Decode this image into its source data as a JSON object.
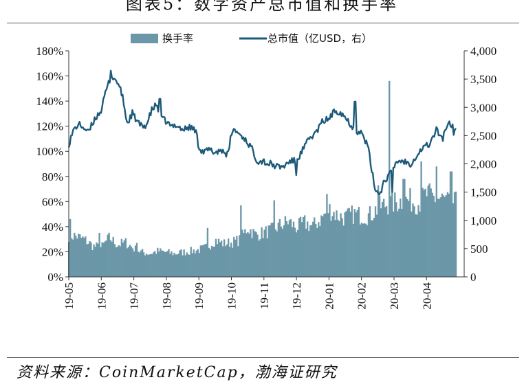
{
  "figure": {
    "title": "图表5：数字资产总市值和换手率",
    "source": "资料来源：CoinMarketCap，渤海证研究"
  },
  "colors": {
    "bar": "#6b97a8",
    "line": "#1d5a7a"
  },
  "chart_data": {
    "type": "bar+line",
    "title": "",
    "legend_position": "top",
    "grid": false,
    "x": {
      "categories": [
        "19-05",
        "19-06",
        "19-07",
        "19-08",
        "19-09",
        "19-10",
        "19-11",
        "19-12",
        "20-01",
        "20-02",
        "20-03",
        "20-04"
      ]
    },
    "y_left": {
      "ticks": [
        "0%",
        "20%",
        "40%",
        "60%",
        "80%",
        "100%",
        "120%",
        "140%",
        "160%",
        "180%"
      ],
      "min": 0,
      "max": 180
    },
    "y_right": {
      "ticks": [
        "0",
        "500",
        "1,000",
        "1,500",
        "2,000",
        "2,500",
        "3,000",
        "3,500",
        "4,000"
      ],
      "min": 0,
      "max": 4000
    },
    "series": [
      {
        "name": "换手率",
        "type": "bar",
        "axis": "left",
        "unit": "%",
        "x": [
          0.0,
          0.25,
          0.5,
          0.75,
          1.0,
          1.25,
          1.5,
          1.75,
          2.0,
          2.25,
          2.5,
          2.75,
          3.0,
          3.25,
          3.5,
          3.75,
          4.0,
          4.25,
          4.5,
          4.75,
          5.0,
          5.25,
          5.5,
          5.75,
          6.0,
          6.25,
          6.5,
          6.75,
          7.0,
          7.25,
          7.5,
          7.75,
          8.0,
          8.25,
          8.5,
          8.75,
          9.0,
          9.25,
          9.5,
          9.75,
          10.0,
          10.25,
          10.5,
          10.75,
          11.0,
          11.25,
          11.5,
          11.75
        ],
        "values": [
          34,
          33,
          30,
          25,
          24,
          32,
          26,
          28,
          23,
          20,
          19,
          21,
          20,
          19,
          20,
          21,
          22,
          24,
          30,
          27,
          28,
          30,
          40,
          34,
          36,
          38,
          42,
          45,
          40,
          44,
          41,
          47,
          55,
          50,
          48,
          51,
          50,
          50,
          56,
          59,
          60,
          62,
          62,
          60,
          67,
          64,
          63,
          60
        ],
        "peaks": [
          {
            "x": 0.05,
            "value": 46
          },
          {
            "x": 0.95,
            "value": 35
          },
          {
            "x": 2.1,
            "value": 27
          },
          {
            "x": 4.25,
            "value": 39
          },
          {
            "x": 5.3,
            "value": 57
          },
          {
            "x": 6.3,
            "value": 61
          },
          {
            "x": 7.95,
            "value": 66
          },
          {
            "x": 9.5,
            "value": 73
          },
          {
            "x": 9.85,
            "value": 156
          },
          {
            "x": 10.3,
            "value": 78
          },
          {
            "x": 10.85,
            "value": 92
          },
          {
            "x": 11.3,
            "value": 88
          },
          {
            "x": 11.75,
            "value": 84
          }
        ]
      },
      {
        "name": "总市值（亿USD，右）",
        "type": "line",
        "axis": "right",
        "unit": "亿USD",
        "x": [
          0.0,
          0.15,
          0.3,
          0.45,
          0.6,
          0.8,
          1.0,
          1.15,
          1.3,
          1.5,
          1.65,
          1.8,
          1.95,
          2.1,
          2.25,
          2.4,
          2.55,
          2.7,
          2.85,
          3.0,
          3.15,
          3.3,
          3.5,
          3.7,
          3.9,
          4.0,
          4.15,
          4.3,
          4.5,
          4.7,
          4.9,
          5.0,
          5.1,
          5.2,
          5.4,
          5.6,
          5.8,
          6.0,
          6.1,
          6.2,
          6.4,
          6.6,
          6.8,
          7.0,
          7.2,
          7.4,
          7.6,
          7.8,
          8.0,
          8.2,
          8.4,
          8.6,
          8.8,
          9.0,
          9.2,
          9.4,
          9.55,
          9.7,
          9.85,
          9.95,
          10.1,
          10.3,
          10.5,
          10.7,
          10.9,
          11.1,
          11.3,
          11.5,
          11.6,
          11.7,
          11.8,
          11.9
        ],
        "values": [
          2350,
          2600,
          2700,
          2650,
          2550,
          2800,
          2950,
          3300,
          3550,
          3450,
          3200,
          2700,
          2900,
          2750,
          2650,
          2700,
          2950,
          3050,
          2800,
          2750,
          2650,
          2700,
          2600,
          2650,
          2600,
          2300,
          2200,
          2250,
          2200,
          2250,
          2150,
          2550,
          2600,
          2550,
          2450,
          2300,
          2050,
          2050,
          2000,
          2000,
          1950,
          1950,
          2050,
          2050,
          2250,
          2450,
          2550,
          2750,
          2800,
          2950,
          2900,
          2750,
          2600,
          2550,
          2300,
          1600,
          1450,
          1700,
          1800,
          1900,
          2050,
          2050,
          2000,
          2150,
          2300,
          2350,
          2600,
          2450,
          2650,
          2700,
          2550,
          2600
        ],
        "peaks": [
          {
            "x": 1.3,
            "value": 3650
          },
          {
            "x": 2.8,
            "value": 3150
          },
          {
            "x": 7.0,
            "value": 1800
          },
          {
            "x": 8.8,
            "value": 3100
          },
          {
            "x": 9.95,
            "value": 1500
          },
          {
            "x": 11.8,
            "value": 2700
          }
        ]
      }
    ]
  }
}
